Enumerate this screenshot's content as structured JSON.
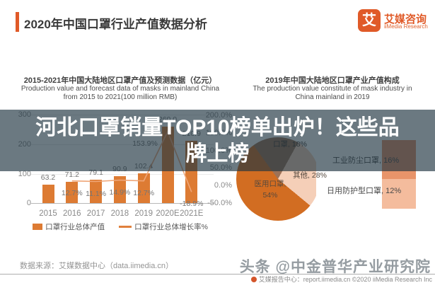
{
  "header": {
    "title": "2020年中国口罩行业产值数据分析",
    "logo": {
      "mark": "艾",
      "name_cn": "艾媒咨询",
      "name_en": "iiMedia Research"
    },
    "accent_color": "#e05a28"
  },
  "overlay": {
    "line1": "河北口罩销量TOP10榜单出炉！这些品",
    "line2": "牌上榜"
  },
  "left_chart": {
    "title_cn": "2015-2021年中国大陆地区口罩产值及预测数据（亿元）",
    "title_en_1": "Production value and forecast data of masks in mainland China",
    "title_en_2": "from 2015 to 2021(100 million RMB)",
    "legend": [
      "口罩行业总体产值",
      "口罩行业总体增长率%"
    ]
  },
  "right_chart": {
    "title_cn": "2019年中国大陆地区口罩产业产值构成",
    "title_en_1": "The production value constitute of mask industry in",
    "title_en_2": "China mainland in 2019"
  },
  "footer": {
    "source": "数据来源：艾媒数据中心（data.iimedia.cn）",
    "watermark": "头条 @中金普华产业研究院",
    "copyright": "艾媒报告中心：report.iimedia.cn ©2020 iiMedia Research Inc"
  },
  "chart_data": [
    {
      "type": "bar",
      "title": "2015-2021年中国大陆地区口罩产值及预测数据（亿元）",
      "categories": [
        "2015",
        "2016",
        "2017",
        "2018",
        "2019",
        "2020E",
        "2021E"
      ],
      "series": [
        {
          "name": "口罩行业总体产值",
          "type": "bar",
          "color": "#dd7b33",
          "values": [
            63.2,
            71.2,
            79.1,
            90.9,
            102.4,
            260.0,
            210.9
          ],
          "labels": [
            "63.2",
            "71.2",
            "79.1",
            "90.9",
            "102.4",
            "260.0",
            "210.9"
          ]
        },
        {
          "name": "口罩行业总体增长率%",
          "type": "line",
          "color": "#efa678",
          "values": [
            null,
            12.7,
            11.1,
            14.9,
            12.7,
            153.9,
            -18.9
          ],
          "labels": [
            null,
            "12.7%",
            "11.1%",
            "14.9%",
            "12.7%",
            "153.9%",
            "-18.9%"
          ]
        }
      ],
      "xlabel": "",
      "ylabel": "亿元 (100 million RMB)",
      "left_axis": {
        "ticks": [
          0,
          100,
          200,
          300
        ],
        "ylim": [
          0,
          300
        ]
      },
      "right_axis": {
        "ticks": [
          -50,
          0,
          50,
          100,
          150,
          200
        ],
        "tick_labels": [
          "-50.0%",
          "0.0%",
          "50.0%",
          "100.0%",
          "150.0%",
          "200.0%"
        ],
        "ylim": [
          -50,
          200
        ]
      },
      "grid": true,
      "legend_position": "bottom"
    },
    {
      "type": "pie",
      "title": "2019年中国大陆地区口罩产业产值构成",
      "slices": [
        {
          "label": "口罩, 18%",
          "value": 18,
          "color": "#9e7257"
        },
        {
          "label": "其他, 28%",
          "value": 28,
          "color": "#f5cfb8"
        },
        {
          "label": "医用口罩,",
          "label2": "54%",
          "value": 54,
          "color": "#d26d22"
        }
      ],
      "callouts": [
        {
          "label": "工业防尘口罩, 16%",
          "value": 16,
          "color": "#e8946a"
        },
        {
          "label": "日用防护型口罩, 12%",
          "value": 12,
          "color": "#f4bc9d"
        }
      ],
      "legend_position": "none"
    }
  ]
}
